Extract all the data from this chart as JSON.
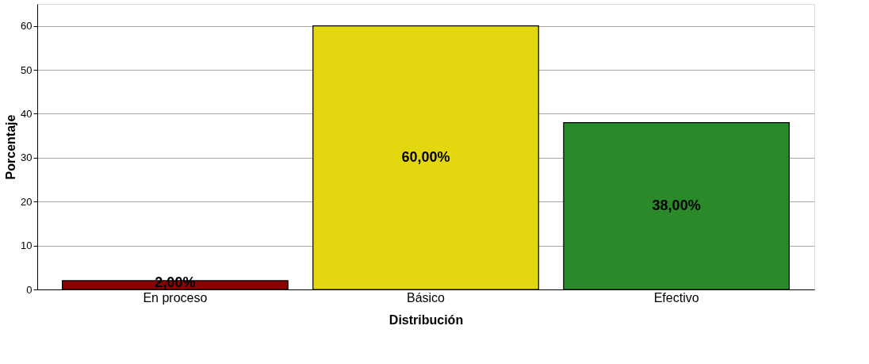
{
  "chart_data": {
    "type": "bar",
    "xlabel": "Distribución",
    "ylabel": "Porcentaje",
    "categories": [
      "En proceso",
      "Básico",
      "Efectivo"
    ],
    "values": [
      2,
      60,
      38
    ],
    "colors": [
      "#8b0000",
      "#e3d70f",
      "#2a8a2a"
    ],
    "value_labels": [
      "2,00%",
      "60,00%",
      "38,00%"
    ],
    "ylim": [
      0,
      65
    ],
    "yticks": [
      0,
      10,
      20,
      30,
      40,
      50,
      60
    ],
    "grid": "y",
    "legend": false
  }
}
